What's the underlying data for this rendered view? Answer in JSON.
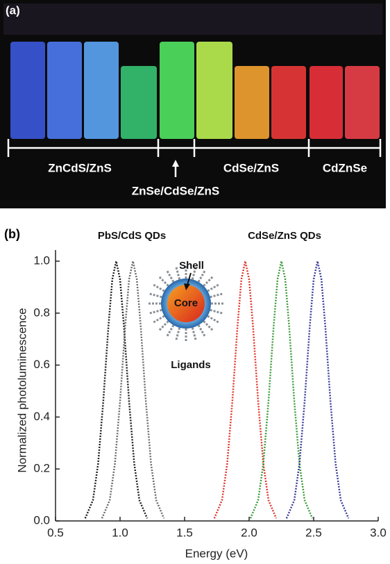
{
  "panel_a": {
    "panel_label": "(a)",
    "labels": [
      "ZnCdS/ZnS",
      "ZnSe/CdSe/ZnS",
      "CdSe/ZnS",
      "CdZnSe"
    ]
  },
  "chart_data": {
    "type": "line",
    "panel_label": "(b)",
    "x_label": "Energy (eV)",
    "y_label": "Normalized photoluminescence",
    "annotations": [
      "PbS/CdS QDs",
      "CdSe/ZnS QDs",
      "Shell",
      "Core",
      "Ligands"
    ],
    "xlim": [
      0.5,
      3.0
    ],
    "xticks": [
      {
        "value": 0.5,
        "label": "0.5"
      },
      {
        "value": 1,
        "label": "1.0"
      },
      {
        "value": 1.5,
        "label": "1.5"
      },
      {
        "value": 2,
        "label": "2.0"
      },
      {
        "value": 2.5,
        "label": "2.5"
      },
      {
        "value": 3,
        "label": "3.0"
      }
    ],
    "ylim": [
      0,
      1.0
    ],
    "yticks": [
      {
        "value": 0,
        "label": "0.0"
      },
      {
        "value": 0.2,
        "label": "0.2"
      },
      {
        "value": 0.4,
        "label": "0.4"
      },
      {
        "value": 0.6,
        "label": "0.6"
      },
      {
        "value": 0.8,
        "label": "0.8"
      },
      {
        "value": 1,
        "label": "1.0"
      }
    ],
    "series": [
      {
        "color": "#1e1e1e",
        "x": [
          0.73,
          0.79,
          0.83,
          0.87,
          0.91,
          0.94,
          0.97,
          1.0,
          1.03,
          1.07,
          1.11,
          1.15,
          1.21
        ],
        "values": [
          0.01,
          0.08,
          0.22,
          0.46,
          0.75,
          0.93,
          1.0,
          0.93,
          0.75,
          0.46,
          0.22,
          0.08,
          0.01
        ]
      },
      {
        "color": "#6a6a6a",
        "x": [
          0.86,
          0.92,
          0.96,
          1.0,
          1.04,
          1.07,
          1.1,
          1.13,
          1.16,
          1.2,
          1.24,
          1.28,
          1.34
        ],
        "values": [
          0.01,
          0.08,
          0.22,
          0.46,
          0.75,
          0.93,
          1.0,
          0.93,
          0.75,
          0.46,
          0.22,
          0.08,
          0.01
        ]
      },
      {
        "color": "#e0352b",
        "x": [
          1.73,
          1.79,
          1.83,
          1.87,
          1.91,
          1.94,
          1.97,
          2.0,
          2.03,
          2.07,
          2.11,
          2.15,
          2.21
        ],
        "values": [
          0.01,
          0.08,
          0.22,
          0.46,
          0.75,
          0.93,
          1.0,
          0.93,
          0.75,
          0.46,
          0.22,
          0.08,
          0.01
        ]
      },
      {
        "color": "#3a9a3a",
        "x": [
          2.01,
          2.07,
          2.11,
          2.15,
          2.19,
          2.22,
          2.25,
          2.28,
          2.31,
          2.35,
          2.39,
          2.43,
          2.49
        ],
        "values": [
          0.01,
          0.08,
          0.22,
          0.46,
          0.75,
          0.93,
          1.0,
          0.93,
          0.75,
          0.46,
          0.22,
          0.08,
          0.01
        ]
      },
      {
        "color": "#3b3b9a",
        "x": [
          2.29,
          2.35,
          2.39,
          2.43,
          2.47,
          2.5,
          2.53,
          2.56,
          2.59,
          2.63,
          2.67,
          2.71,
          2.77
        ],
        "values": [
          0.01,
          0.08,
          0.22,
          0.46,
          0.75,
          0.93,
          1.0,
          0.93,
          0.75,
          0.46,
          0.22,
          0.08,
          0.01
        ]
      }
    ]
  }
}
